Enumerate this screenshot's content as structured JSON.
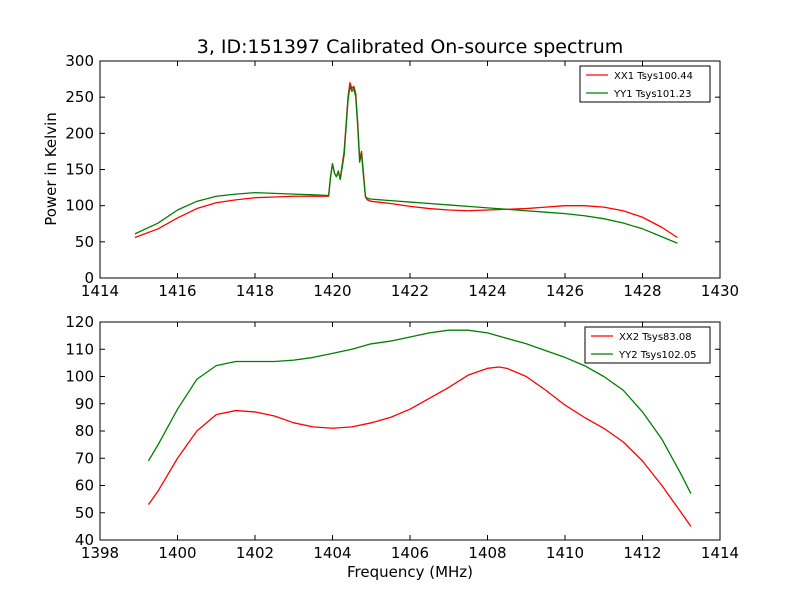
{
  "chart_data": [
    {
      "type": "line",
      "title": "3, ID:151397 Calibrated On-source spectrum",
      "xlabel": "",
      "ylabel": "Power in Kelvin",
      "xlim": [
        1414,
        1430
      ],
      "ylim": [
        0,
        300
      ],
      "xticks": [
        1414,
        1416,
        1418,
        1420,
        1422,
        1424,
        1426,
        1428,
        1430
      ],
      "yticks": [
        0,
        50,
        100,
        150,
        200,
        250,
        300
      ],
      "legend_position": "top-right",
      "series": [
        {
          "name": "XX1 Tsys100.44",
          "color": "#ff0000",
          "points": [
            [
              1414.9,
              56
            ],
            [
              1415.5,
              68
            ],
            [
              1416,
              83
            ],
            [
              1416.5,
              96
            ],
            [
              1417,
              104
            ],
            [
              1417.5,
              108
            ],
            [
              1418,
              111
            ],
            [
              1418.5,
              112
            ],
            [
              1419,
              113
            ],
            [
              1419.5,
              113
            ],
            [
              1419.9,
              113
            ],
            [
              1419.95,
              140
            ],
            [
              1420,
              158
            ],
            [
              1420.05,
              145
            ],
            [
              1420.1,
              140
            ],
            [
              1420.15,
              146
            ],
            [
              1420.2,
              138
            ],
            [
              1420.3,
              175
            ],
            [
              1420.4,
              250
            ],
            [
              1420.45,
              270
            ],
            [
              1420.5,
              262
            ],
            [
              1420.55,
              265
            ],
            [
              1420.6,
              255
            ],
            [
              1420.65,
              215
            ],
            [
              1420.7,
              165
            ],
            [
              1420.75,
              175
            ],
            [
              1420.8,
              145
            ],
            [
              1420.85,
              112
            ],
            [
              1420.9,
              108
            ],
            [
              1421,
              106
            ],
            [
              1421.5,
              103
            ],
            [
              1422,
              99
            ],
            [
              1422.5,
              96
            ],
            [
              1423,
              94
            ],
            [
              1423.5,
              93
            ],
            [
              1424,
              94
            ],
            [
              1424.5,
              95
            ],
            [
              1425,
              96
            ],
            [
              1425.5,
              98
            ],
            [
              1426,
              100
            ],
            [
              1426.5,
              100
            ],
            [
              1427,
              98
            ],
            [
              1427.5,
              93
            ],
            [
              1428,
              84
            ],
            [
              1428.5,
              70
            ],
            [
              1428.9,
              56
            ]
          ]
        },
        {
          "name": "YY1 Tsys101.23",
          "color": "#008000",
          "points": [
            [
              1414.9,
              61
            ],
            [
              1415.5,
              76
            ],
            [
              1416,
              94
            ],
            [
              1416.5,
              106
            ],
            [
              1417,
              113
            ],
            [
              1417.5,
              116
            ],
            [
              1418,
              118
            ],
            [
              1418.5,
              117
            ],
            [
              1419,
              116
            ],
            [
              1419.5,
              115
            ],
            [
              1419.9,
              114
            ],
            [
              1419.95,
              140
            ],
            [
              1420,
              158
            ],
            [
              1420.05,
              145
            ],
            [
              1420.1,
              140
            ],
            [
              1420.15,
              148
            ],
            [
              1420.2,
              136
            ],
            [
              1420.3,
              170
            ],
            [
              1420.4,
              245
            ],
            [
              1420.45,
              265
            ],
            [
              1420.5,
              258
            ],
            [
              1420.55,
              262
            ],
            [
              1420.6,
              250
            ],
            [
              1420.65,
              210
            ],
            [
              1420.7,
              160
            ],
            [
              1420.75,
              172
            ],
            [
              1420.8,
              140
            ],
            [
              1420.85,
              113
            ],
            [
              1420.9,
              110
            ],
            [
              1421,
              109
            ],
            [
              1421.5,
              107
            ],
            [
              1422,
              105
            ],
            [
              1422.5,
              103
            ],
            [
              1423,
              101
            ],
            [
              1423.5,
              99
            ],
            [
              1424,
              97
            ],
            [
              1424.5,
              95
            ],
            [
              1425,
              93
            ],
            [
              1425.5,
              91
            ],
            [
              1426,
              89
            ],
            [
              1426.5,
              86
            ],
            [
              1427,
              82
            ],
            [
              1427.5,
              76
            ],
            [
              1428,
              68
            ],
            [
              1428.5,
              57
            ],
            [
              1428.9,
              48
            ]
          ]
        }
      ]
    },
    {
      "type": "line",
      "title": "",
      "xlabel": "Frequency (MHz)",
      "ylabel": "",
      "xlim": [
        1398,
        1414
      ],
      "ylim": [
        40,
        120
      ],
      "xticks": [
        1398,
        1400,
        1402,
        1404,
        1406,
        1408,
        1410,
        1412,
        1414
      ],
      "yticks": [
        40,
        50,
        60,
        70,
        80,
        90,
        100,
        110,
        120
      ],
      "legend_position": "top-right",
      "series": [
        {
          "name": "XX2 Tsys83.08",
          "color": "#ff0000",
          "points": [
            [
              1399.25,
              53
            ],
            [
              1399.5,
              58
            ],
            [
              1400,
              70
            ],
            [
              1400.5,
              80
            ],
            [
              1401,
              86
            ],
            [
              1401.5,
              87.5
            ],
            [
              1402,
              87
            ],
            [
              1402.5,
              85.5
            ],
            [
              1403,
              83
            ],
            [
              1403.5,
              81.5
            ],
            [
              1404,
              81
            ],
            [
              1404.5,
              81.5
            ],
            [
              1405,
              83
            ],
            [
              1405.5,
              85
            ],
            [
              1406,
              88
            ],
            [
              1406.5,
              92
            ],
            [
              1407,
              96
            ],
            [
              1407.5,
              100.5
            ],
            [
              1408,
              103
            ],
            [
              1408.3,
              103.5
            ],
            [
              1408.5,
              103
            ],
            [
              1409,
              100
            ],
            [
              1409.5,
              95
            ],
            [
              1410,
              89.5
            ],
            [
              1410.5,
              85
            ],
            [
              1411,
              81
            ],
            [
              1411.5,
              76
            ],
            [
              1412,
              69
            ],
            [
              1412.5,
              60
            ],
            [
              1413,
              50
            ],
            [
              1413.25,
              45
            ]
          ]
        },
        {
          "name": "YY2 Tsys102.05",
          "color": "#008000",
          "points": [
            [
              1399.25,
              69
            ],
            [
              1399.5,
              75
            ],
            [
              1400,
              88
            ],
            [
              1400.5,
              99
            ],
            [
              1401,
              104
            ],
            [
              1401.5,
              105.5
            ],
            [
              1402,
              105.5
            ],
            [
              1402.5,
              105.5
            ],
            [
              1403,
              106
            ],
            [
              1403.5,
              107
            ],
            [
              1404,
              108.5
            ],
            [
              1404.5,
              110
            ],
            [
              1405,
              112
            ],
            [
              1405.5,
              113
            ],
            [
              1406,
              114.5
            ],
            [
              1406.5,
              116
            ],
            [
              1407,
              117
            ],
            [
              1407.5,
              117
            ],
            [
              1408,
              116
            ],
            [
              1408.5,
              114
            ],
            [
              1409,
              112
            ],
            [
              1409.5,
              109.5
            ],
            [
              1410,
              107
            ],
            [
              1410.5,
              104
            ],
            [
              1411,
              100
            ],
            [
              1411.5,
              95
            ],
            [
              1412,
              87
            ],
            [
              1412.5,
              77
            ],
            [
              1413,
              64
            ],
            [
              1413.25,
              57
            ]
          ]
        }
      ]
    }
  ]
}
